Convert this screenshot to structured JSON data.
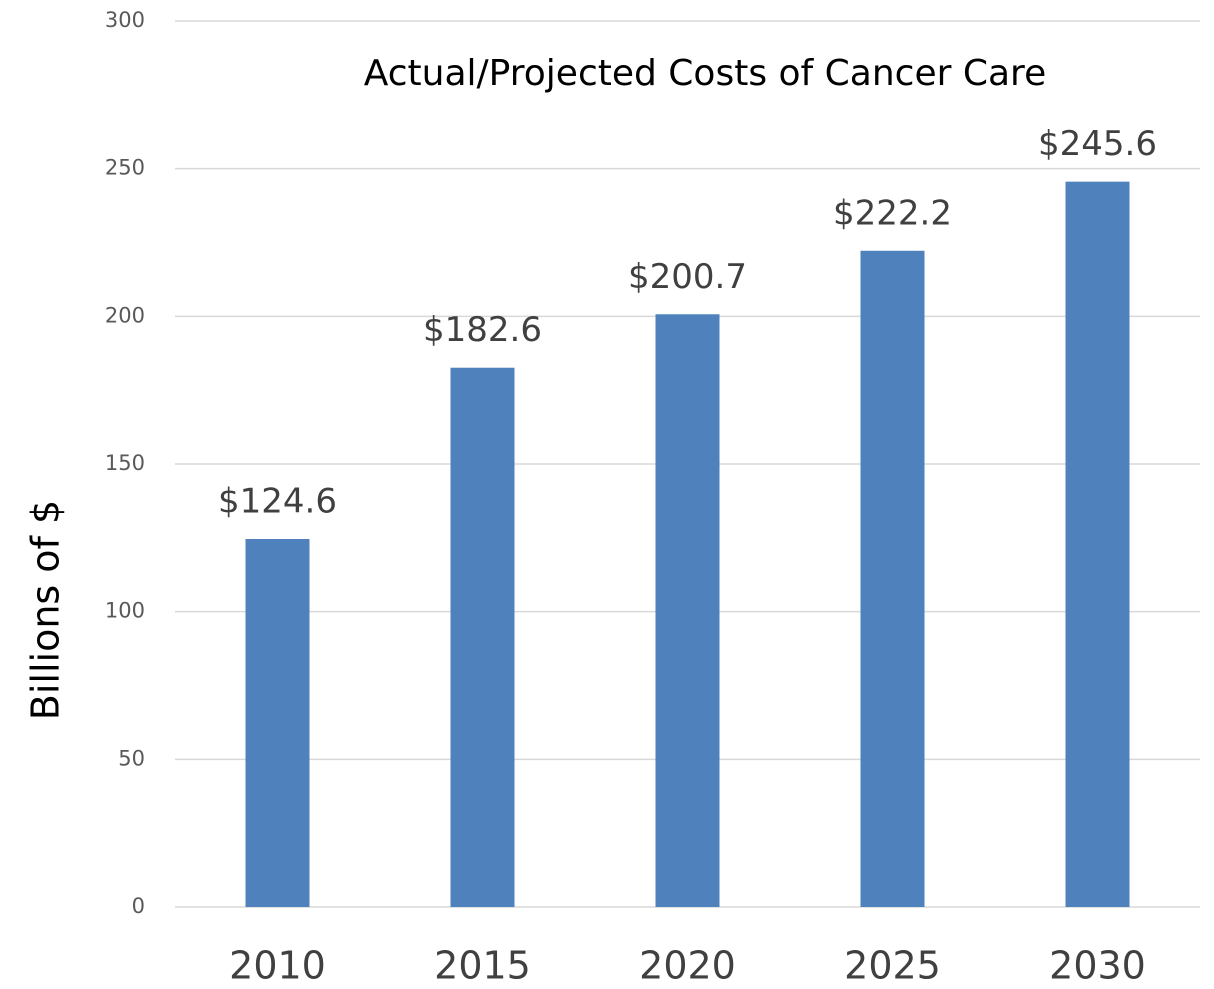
{
  "chart_data": {
    "type": "bar",
    "title": "Actual/Projected Costs of Cancer Care",
    "y_label": "Billions of $",
    "categories": [
      "2010",
      "2015",
      "2020",
      "2025",
      "2030"
    ],
    "values": [
      124.6,
      182.6,
      200.7,
      222.2,
      245.6
    ],
    "value_labels": [
      "$124.6",
      "$182.6",
      "$200.7",
      "$222.2",
      "$245.6"
    ],
    "color": "#4f81bd",
    "ylim": [
      0,
      300
    ],
    "yticks": [
      0,
      50,
      100,
      150,
      200,
      250,
      300
    ],
    "grid": true
  }
}
